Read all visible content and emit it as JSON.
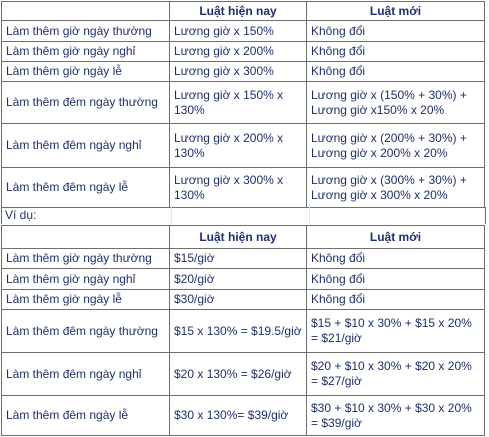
{
  "table1": {
    "headers": [
      "",
      "Luật hiện nay",
      "Luật mới"
    ],
    "rows": [
      [
        "Làm thêm giờ ngày thường",
        "Lương giờ x 150%",
        "Không đổi"
      ],
      [
        "Làm thêm giờ ngày nghỉ",
        "Lương giờ x 200%",
        "Không đổi"
      ],
      [
        "Làm thêm giờ ngày lễ",
        "Lương giờ x 300%",
        "Không đổi"
      ],
      [
        "Làm thêm đêm ngày thường",
        "Lương giờ x 150% x 130%",
        "Lương giờ x (150% + 30%) + Lương giờ x150% x 20%"
      ],
      [
        "Làm thêm đêm ngày nghỉ",
        "Lương giờ x 200% x 130%",
        "Lương giờ x (200% + 30%) + Lương giờ x 200% x 20%"
      ],
      [
        "Làm thêm đêm ngày lễ",
        "Lương giờ x 300% x 130%",
        "Lương giờ x (300% + 30%) + Lương giờ x 300% x 20%"
      ]
    ]
  },
  "example_label": "Ví dụ:",
  "table2": {
    "headers": [
      "",
      "Luật hiện nay",
      "Luật mới"
    ],
    "rows": [
      [
        "Làm thêm giờ ngày thường",
        "$15/giờ",
        "Không đổi"
      ],
      [
        "Làm thêm giờ ngày nghỉ",
        "$20/giờ",
        "Không đổi"
      ],
      [
        "Làm thêm giờ ngày lễ",
        "$30/giờ",
        "Không đổi"
      ],
      [
        "Làm thêm đêm ngày thường",
        "$15 x 130% = $19.5/giờ",
        "$15 + $10 x 30% + $15 x 20% = $21/giờ"
      ],
      [
        "Làm thêm đêm ngày nghỉ",
        "$20 x 130% = $26/giờ",
        "$20 + $10 x 30%  + $20 x 20% = $27/giờ"
      ],
      [
        "Làm thêm đêm ngày lễ",
        "$30 x 130%= $39/giờ",
        "$30 + $10 x 30% + $30 x 20% = $39/giờ"
      ]
    ]
  }
}
